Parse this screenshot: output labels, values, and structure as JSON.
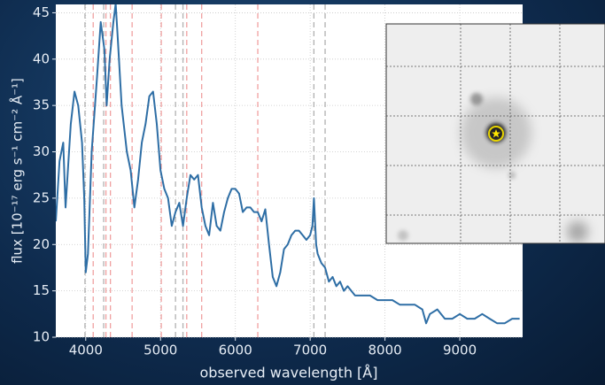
{
  "chart_data": {
    "type": "line",
    "x_label": "observed wavelength [Å]",
    "y_label": "flux [10⁻¹⁷ erg s⁻¹ cm⁻² Å⁻¹]",
    "series": [
      {
        "color": "#2e6ea5",
        "x": [
          3600,
          3650,
          3700,
          3730,
          3800,
          3850,
          3900,
          3950,
          3980,
          4000,
          4030,
          4080,
          4150,
          4200,
          4250,
          4280,
          4320,
          4370,
          4400,
          4430,
          4480,
          4550,
          4600,
          4650,
          4700,
          4750,
          4800,
          4850,
          4900,
          4950,
          5000,
          5050,
          5100,
          5150,
          5200,
          5250,
          5300,
          5350,
          5400,
          5450,
          5500,
          5550,
          5600,
          5650,
          5700,
          5750,
          5800,
          5850,
          5900,
          5950,
          6000,
          6050,
          6100,
          6150,
          6200,
          6250,
          6300,
          6350,
          6400,
          6450,
          6500,
          6550,
          6600,
          6650,
          6700,
          6750,
          6800,
          6850,
          6900,
          6950,
          7000,
          7030,
          7050,
          7080,
          7100,
          7150,
          7200,
          7250,
          7300,
          7350,
          7400,
          7450,
          7500,
          7600,
          7700,
          7800,
          7900,
          8000,
          8100,
          8200,
          8300,
          8400,
          8500,
          8550,
          8600,
          8700,
          8800,
          8900,
          9000,
          9100,
          9200,
          9300,
          9400,
          9500,
          9600,
          9700,
          9800
        ],
        "values": [
          22.5,
          29,
          31,
          24,
          33,
          36.5,
          35,
          31,
          25,
          17,
          19,
          30,
          38,
          44,
          41,
          35,
          40,
          44,
          46,
          42,
          35,
          30,
          28,
          24,
          27,
          31,
          33,
          36,
          36.5,
          33,
          28,
          26,
          25,
          22,
          23.5,
          24.5,
          22,
          25,
          27.5,
          27,
          27.5,
          24,
          22,
          21,
          24.5,
          22,
          21.5,
          23.5,
          25,
          26,
          26,
          25.5,
          23.5,
          24,
          24,
          23.5,
          23.5,
          22.5,
          23.8,
          20,
          16.5,
          15.5,
          17,
          19.5,
          20,
          21,
          21.5,
          21.5,
          21,
          20.5,
          21,
          22,
          25,
          20,
          19,
          18,
          17.5,
          16,
          16.5,
          15.5,
          16,
          15,
          15.5,
          14.5,
          14.5,
          14.5,
          14,
          14,
          14,
          13.5,
          13.5,
          13.5,
          13,
          11.5,
          12.5,
          13,
          12,
          12,
          12.5,
          12,
          12,
          12.5,
          12,
          11.5,
          11.5,
          12,
          12
        ]
      }
    ],
    "vlines": [
      {
        "x": 3990,
        "color": "#b0b0b0"
      },
      {
        "x": 4100,
        "color": "#f0a0a0"
      },
      {
        "x": 4240,
        "color": "#b0b0b0"
      },
      {
        "x": 4270,
        "color": "#f0a0a0"
      },
      {
        "x": 4330,
        "color": "#f0a0a0"
      },
      {
        "x": 4620,
        "color": "#f0a0a0"
      },
      {
        "x": 5010,
        "color": "#f0a0a0"
      },
      {
        "x": 5200,
        "color": "#b0b0b0"
      },
      {
        "x": 5300,
        "color": "#b0b0b0"
      },
      {
        "x": 5350,
        "color": "#f0a0a0"
      },
      {
        "x": 5550,
        "color": "#f0a0a0"
      },
      {
        "x": 6300,
        "color": "#f0a0a0"
      },
      {
        "x": 7050,
        "color": "#b0b0b0"
      },
      {
        "x": 7200,
        "color": "#b0b0b0"
      }
    ],
    "xlim": [
      3600,
      9840
    ],
    "ylim": [
      10,
      45.9
    ],
    "xticks": [
      4000,
      5000,
      6000,
      7000,
      8000,
      9000
    ],
    "yticks": [
      10,
      15,
      20,
      25,
      30,
      35,
      40,
      45
    ],
    "grid": true
  }
}
